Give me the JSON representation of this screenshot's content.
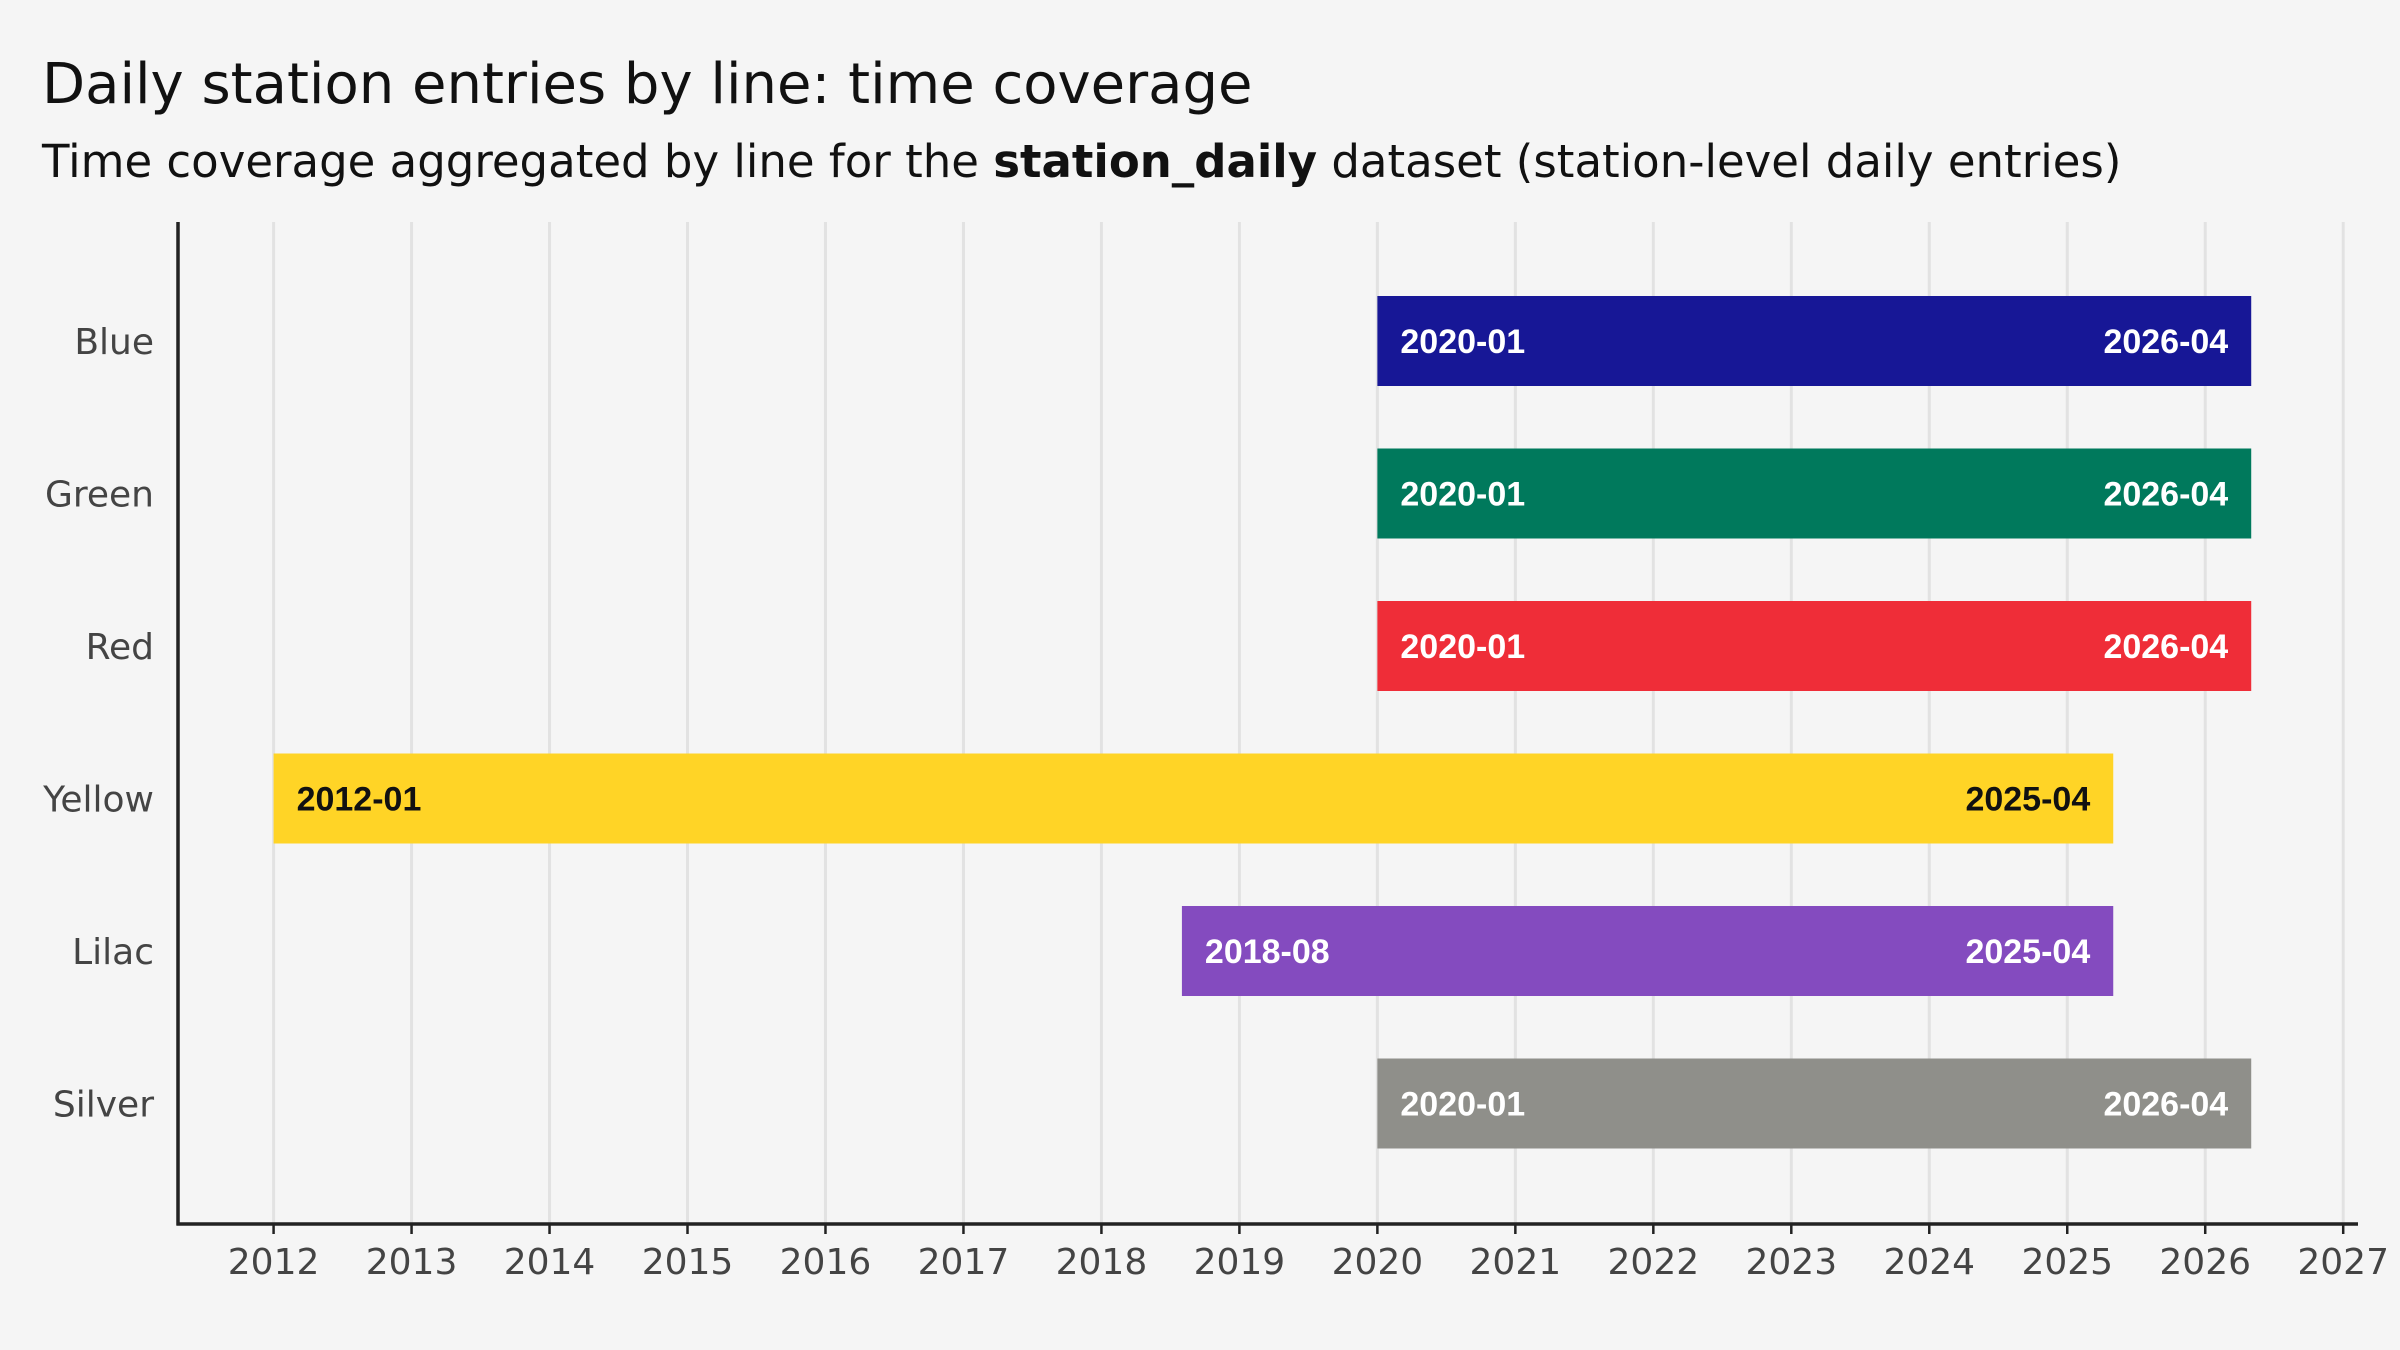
{
  "chart_data": {
    "type": "bar",
    "orientation": "horizontal-range",
    "title": "Daily station entries by line: time coverage",
    "subtitle": {
      "prefix": "Time coverage aggregated by line for the ",
      "bold": "station_daily",
      "suffix": " dataset (station-level daily entries)"
    },
    "xlim": [
      2011.3,
      2027.1
    ],
    "x_ticks": [
      "2012",
      "2013",
      "2014",
      "2015",
      "2016",
      "2017",
      "2018",
      "2019",
      "2020",
      "2021",
      "2022",
      "2023",
      "2024",
      "2025",
      "2026",
      "2027"
    ],
    "grid": true,
    "categories": [
      "Blue",
      "Green",
      "Red",
      "Yellow",
      "Lilac",
      "Silver"
    ],
    "series": [
      {
        "category": "Blue",
        "start": "2020-01",
        "end": "2026-04",
        "color": "#171796",
        "label_color": "#ffffff"
      },
      {
        "category": "Green",
        "start": "2020-01",
        "end": "2026-04",
        "color": "#00795c",
        "label_color": "#ffffff"
      },
      {
        "category": "Red",
        "start": "2020-01",
        "end": "2026-04",
        "color": "#ef2d38",
        "label_color": "#ffffff"
      },
      {
        "category": "Yellow",
        "start": "2012-01",
        "end": "2025-04",
        "color": "#ffd426",
        "label_color": "#111111"
      },
      {
        "category": "Lilac",
        "start": "2018-08",
        "end": "2025-04",
        "color": "#844bbf",
        "label_color": "#ffffff"
      },
      {
        "category": "Silver",
        "start": "2020-01",
        "end": "2026-04",
        "color": "#8f8f8a",
        "label_color": "#ffffff"
      }
    ]
  }
}
